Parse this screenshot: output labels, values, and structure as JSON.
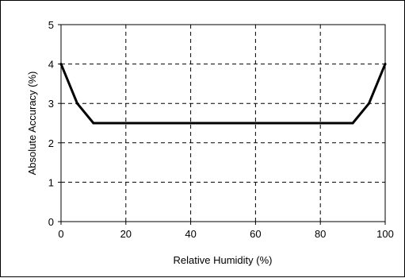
{
  "chart_data": {
    "type": "line",
    "title": "",
    "xlabel": "Relative Humidity (%)",
    "ylabel": "Absolute Accuracy (%)",
    "xlim": [
      0,
      100
    ],
    "ylim": [
      0,
      5
    ],
    "xticks": [
      "0",
      "20",
      "40",
      "60",
      "80",
      "100"
    ],
    "yticks": [
      "0",
      "1",
      "2",
      "3",
      "4",
      "5"
    ],
    "grid": true,
    "grid_style": "dashed",
    "series": [
      {
        "color": "#000000",
        "x": [
          0,
          5,
          10,
          90,
          95,
          100
        ],
        "y": [
          4,
          3,
          2.5,
          2.5,
          3,
          4
        ]
      }
    ]
  }
}
